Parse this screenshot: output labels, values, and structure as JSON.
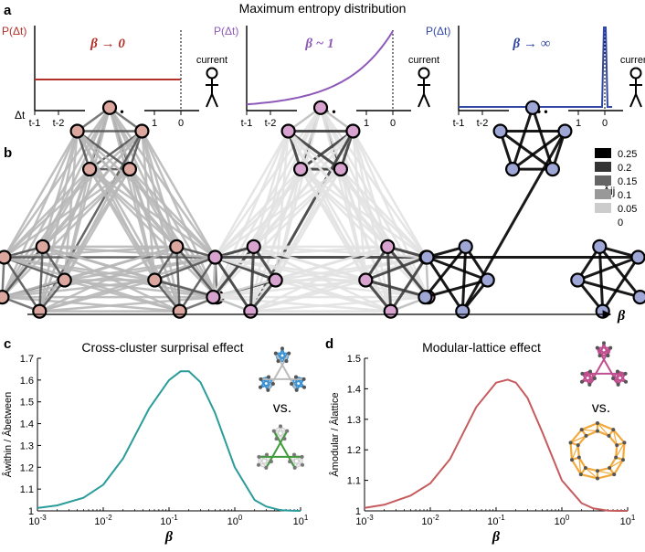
{
  "panel_labels": {
    "a": "a",
    "b": "b",
    "c": "c",
    "d": "d"
  },
  "panel_a": {
    "title": "Maximum entropy distribution",
    "ylabel": "P(Δt)",
    "dt_label": "Δt",
    "ticks": [
      "t-1",
      "t-2",
      "1",
      "0"
    ],
    "dots": "•  •  •",
    "current_label": "current",
    "subplots": [
      {
        "beta_label": "β → 0",
        "color": "#b2322a",
        "shape": "flat"
      },
      {
        "beta_label": "β ~ 1",
        "color": "#8e59b8",
        "shape": "exponential"
      },
      {
        "beta_label": "β → ∞",
        "color": "#3347a4",
        "shape": "spike"
      }
    ]
  },
  "panel_b": {
    "beta_label": "β",
    "legend_title": "Âij",
    "legend": [
      {
        "label": "0.25",
        "color": "#000000"
      },
      {
        "label": "0.2",
        "color": "#333333"
      },
      {
        "label": "0.15",
        "color": "#666666"
      },
      {
        "label": "0.1",
        "color": "#999999"
      },
      {
        "label": "0.05",
        "color": "#cccccc"
      },
      {
        "label": "0",
        "color": "#ffffff"
      }
    ],
    "networks": [
      {
        "node_color": "#dca79f",
        "state": "beta small"
      },
      {
        "node_color": "#d9a3cf",
        "state": "beta medium"
      },
      {
        "node_color": "#9fa7d6",
        "state": "beta large"
      }
    ]
  },
  "chart_data": [
    {
      "type": "line",
      "title": "Cross-cluster surprisal effect",
      "xlabel": "β",
      "ylabel": "Âwithin / Âbetween",
      "xscale": "log",
      "xlim": [
        0.001,
        10
      ],
      "ylim": [
        1.0,
        1.7
      ],
      "xticks": [
        "10-3",
        "10-2",
        "10-1",
        "100",
        "101"
      ],
      "yticks": [
        "1",
        "1.1",
        "1.2",
        "1.3",
        "1.4",
        "1.5",
        "1.6",
        "1.7"
      ],
      "color": "#2a9c9a",
      "inset_vs": "vs.",
      "x": [
        0.001,
        0.002,
        0.005,
        0.01,
        0.02,
        0.05,
        0.1,
        0.15,
        0.2,
        0.3,
        0.5,
        1,
        2,
        3,
        5,
        7,
        10
      ],
      "y": [
        1.013,
        1.025,
        1.06,
        1.12,
        1.24,
        1.47,
        1.6,
        1.64,
        1.64,
        1.59,
        1.45,
        1.2,
        1.05,
        1.02,
        1.003,
        1.001,
        1.0
      ]
    },
    {
      "type": "line",
      "title": "Modular-lattice effect",
      "xlabel": "β",
      "ylabel": "Âmodular / Âlattice",
      "xscale": "log",
      "xlim": [
        0.001,
        10
      ],
      "ylim": [
        1.0,
        1.5
      ],
      "xticks": [
        "10-3",
        "10-2",
        "10-1",
        "100",
        "101"
      ],
      "yticks": [
        "1",
        "1.1",
        "1.2",
        "1.3",
        "1.4",
        "1.5"
      ],
      "color": "#c65b5e",
      "inset_vs": "vs.",
      "x": [
        0.001,
        0.002,
        0.005,
        0.01,
        0.02,
        0.05,
        0.1,
        0.15,
        0.2,
        0.3,
        0.5,
        1,
        2,
        3,
        5,
        7,
        10
      ],
      "y": [
        1.01,
        1.02,
        1.05,
        1.09,
        1.17,
        1.34,
        1.42,
        1.43,
        1.42,
        1.37,
        1.26,
        1.1,
        1.025,
        1.008,
        1.001,
        1.0,
        1.0
      ]
    }
  ]
}
